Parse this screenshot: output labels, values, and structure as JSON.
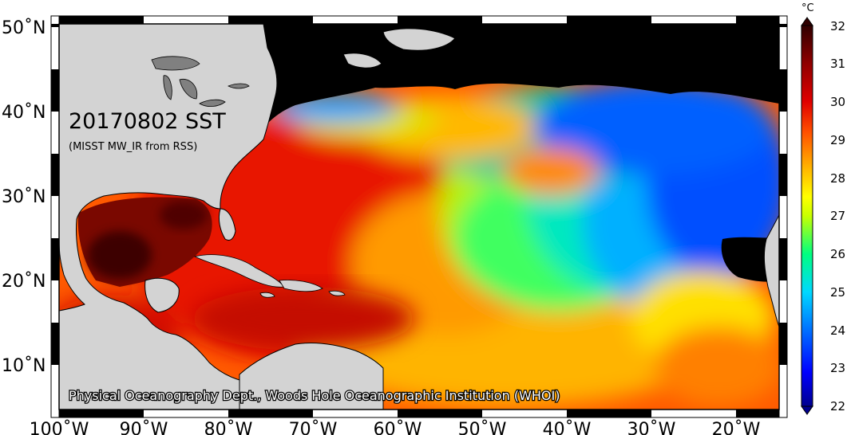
{
  "map": {
    "title": "20170802 SST",
    "subtitle": "(MISST MW_IR from RSS)",
    "credit": "Physical Oceanography Dept., Woods Hole Oceanographic Institution (WHOI)",
    "lon_range": [
      -100,
      -15
    ],
    "lat_range": [
      5,
      51
    ],
    "lon_ticks": [
      "100˚W",
      "90˚W",
      "80˚W",
      "70˚W",
      "60˚W",
      "50˚W",
      "40˚W",
      "30˚W",
      "20˚W"
    ],
    "lat_ticks": [
      "50˚N",
      "40˚N",
      "30˚N",
      "20˚N",
      "10˚N"
    ],
    "colors": {
      "land": "#d3d3d3",
      "no_data": "#000000",
      "frame": "#000000"
    }
  },
  "colorbar": {
    "unit": "°C",
    "min": 22,
    "max": 32,
    "ticks": [
      "32",
      "31",
      "30",
      "29",
      "28",
      "27",
      "26",
      "25",
      "24",
      "23",
      "22"
    ],
    "colors": [
      "#00008f",
      "#0000ff",
      "#0080ff",
      "#00e0ff",
      "#00ff80",
      "#c0ff00",
      "#ffff00",
      "#ffb000",
      "#ff5000",
      "#e00000",
      "#900000",
      "#300000"
    ]
  }
}
